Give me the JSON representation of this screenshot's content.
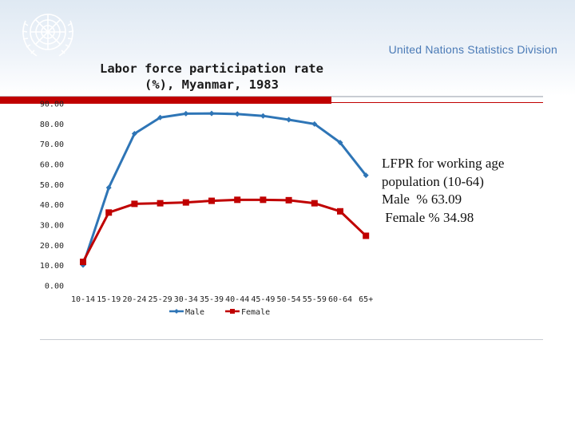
{
  "header": {
    "org_name": "United Nations Statistics Division"
  },
  "chart_data": {
    "type": "line",
    "title_lines": [
      "Labor force participation rate",
      "(%), Myanmar, 1983"
    ],
    "xlabel": "",
    "ylabel": "",
    "categories": [
      "10-14",
      "15-19",
      "20-24",
      "25-29",
      "30-34",
      "35-39",
      "40-44",
      "45-49",
      "50-54",
      "55-59",
      "60-64",
      "65+"
    ],
    "y_ticks": [
      "0.00",
      "10.00",
      "20.00",
      "30.00",
      "40.00",
      "50.00",
      "60.00",
      "70.00",
      "80.00",
      "90.00"
    ],
    "ylim": [
      0,
      90
    ],
    "grid": false,
    "legend_position": "bottom",
    "series": [
      {
        "name": "Male",
        "color": "#2e75b6",
        "marker": "diamond",
        "values": [
          10.2,
          48.5,
          75.2,
          83.2,
          85.1,
          85.2,
          84.9,
          84.0,
          82.1,
          80.0,
          70.8,
          54.6
        ]
      },
      {
        "name": "Female",
        "color": "#c00000",
        "marker": "square",
        "values": [
          11.8,
          36.2,
          40.5,
          40.8,
          41.2,
          42.0,
          42.5,
          42.5,
          42.3,
          40.8,
          36.8,
          24.7
        ]
      }
    ]
  },
  "note": {
    "lines": [
      "LFPR for working age",
      "population (10-64)",
      "Male  % 63.09",
      " Female % 34.98"
    ]
  },
  "colors": {
    "brand_blue": "#4a7ab6",
    "accent_red": "#c00000"
  },
  "icons": {
    "logo": "un-emblem-icon"
  }
}
